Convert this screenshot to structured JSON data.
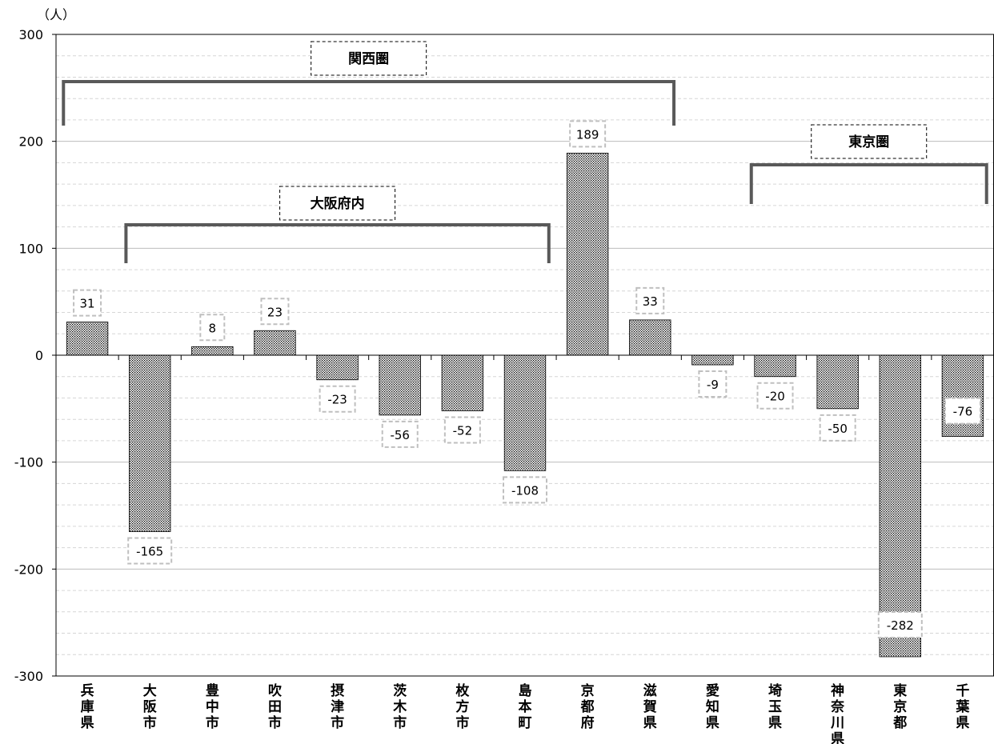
{
  "chart_data": {
    "type": "bar",
    "unit_label": "（人）",
    "title": "",
    "xlabel": "",
    "ylabel": "",
    "ylim": [
      -300,
      300
    ],
    "yticks": [
      300,
      200,
      100,
      0,
      -100,
      -200,
      -300
    ],
    "categories": [
      "兵庫県",
      "大阪市",
      "豊中市",
      "吹田市",
      "摂津市",
      "茨木市",
      "枚方市",
      "島本町",
      "京都府",
      "滋賀県",
      "愛知県",
      "埼玉県",
      "神奈川県",
      "東京都",
      "千葉県"
    ],
    "values": [
      31,
      -165,
      8,
      23,
      -23,
      -56,
      -52,
      -108,
      189,
      33,
      -9,
      -20,
      -50,
      -282,
      -76
    ],
    "bar_pattern": "dotted",
    "grid": true,
    "legend": "none",
    "groups": [
      {
        "label": "関西圏",
        "from": "兵庫県",
        "to": "滋賀県"
      },
      {
        "label": "大阪府内",
        "from": "大阪市",
        "to": "島本町"
      },
      {
        "label": "東京圏",
        "from": "埼玉県",
        "to": "千葉県"
      }
    ],
    "colors": {
      "bar_dot": "#000000",
      "bracket": "#595959",
      "label_border": "#bfbfbf",
      "grid": "#c8c8c8"
    }
  }
}
